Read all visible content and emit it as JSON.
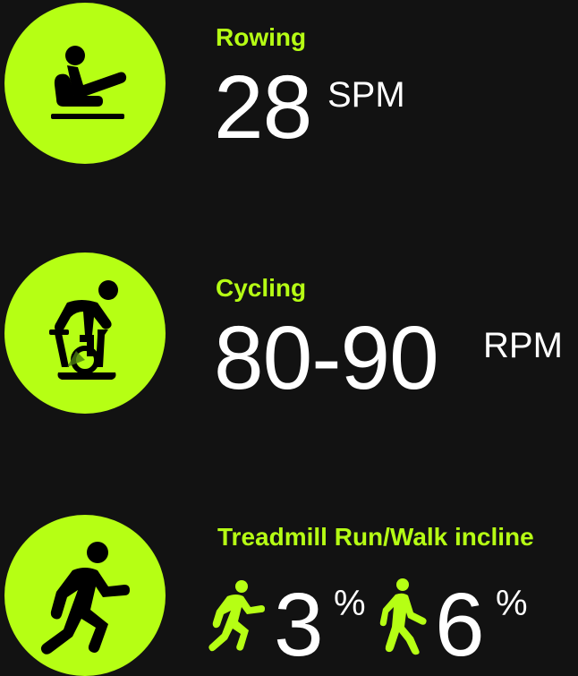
{
  "colors": {
    "background": "#121212",
    "accent": "#b6ff14",
    "text": "#ffffff"
  },
  "rowing": {
    "icon": "rowing-icon",
    "label": "Rowing",
    "value": "28",
    "unit": "SPM"
  },
  "cycling": {
    "icon": "cycling-icon",
    "label": "Cycling",
    "value": "80-90",
    "unit": "RPM"
  },
  "treadmill": {
    "icon": "running-icon",
    "label": "Treadmill Run/Walk incline",
    "run": {
      "icon": "running-icon",
      "value": "3",
      "unit": "%"
    },
    "walk": {
      "icon": "walking-icon",
      "value": "6",
      "unit": "%"
    }
  }
}
